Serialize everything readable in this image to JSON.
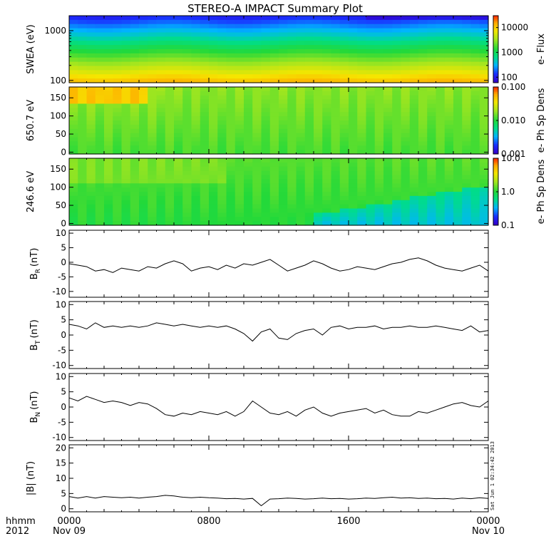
{
  "title": "STEREO-A IMPACT Summary Plot",
  "stamp": "Sat Jun  1 02:34:42 2013",
  "x_axis": {
    "row1_label": "hhmm",
    "row2_label": "2012",
    "ticks": [
      {
        "hour": 0,
        "label": "0000",
        "date": "Nov 09"
      },
      {
        "hour": 8,
        "label": "0800",
        "date": ""
      },
      {
        "hour": 16,
        "label": "1600",
        "date": ""
      },
      {
        "hour": 24,
        "label": "0000",
        "date": "Nov 10"
      }
    ]
  },
  "chart_data": [
    {
      "type": "heatmap",
      "id": "swea",
      "ylabel": "SWEA (eV)",
      "y_scale": "log",
      "ylim": [
        90,
        2000
      ],
      "y_ticks": [
        {
          "v": 100,
          "label": "100"
        },
        {
          "v": 1000,
          "label": "1000"
        }
      ],
      "colorbar": {
        "label": "e- Flux",
        "scale": "log",
        "range": [
          60,
          30000
        ],
        "ticks": [
          {
            "v": 100,
            "label": "100"
          },
          {
            "v": 1000,
            "label": "1000"
          },
          {
            "v": 10000,
            "label": "10000"
          }
        ]
      },
      "color_stops": [
        "#ff3300",
        "#ffaa00",
        "#f5e600",
        "#a5e61e",
        "#22d93a",
        "#00dd88",
        "#00b4ff",
        "#1a2dff",
        "#3300cc"
      ],
      "color_positions": [
        0,
        0.1,
        0.22,
        0.35,
        0.5,
        0.62,
        0.75,
        0.88,
        1
      ]
    },
    {
      "type": "heatmap",
      "id": "pad650",
      "ylabel": "650.7 eV",
      "y_scale": "linear",
      "ylim": [
        -5,
        180
      ],
      "y_ticks": [
        {
          "v": 0,
          "label": "0"
        },
        {
          "v": 50,
          "label": "50"
        },
        {
          "v": 100,
          "label": "100"
        },
        {
          "v": 150,
          "label": "150"
        }
      ],
      "colorbar": {
        "label": "e- Ph Sp Dens",
        "scale": "log",
        "range": [
          0.001,
          0.1
        ],
        "ticks": [
          {
            "v": 0.001,
            "label": "0.001"
          },
          {
            "v": 0.01,
            "label": "0.010"
          },
          {
            "v": 0.1,
            "label": "0.100"
          }
        ]
      }
    },
    {
      "type": "heatmap",
      "id": "pad246",
      "ylabel": "246.6 eV",
      "y_scale": "linear",
      "ylim": [
        -5,
        180
      ],
      "y_ticks": [
        {
          "v": 0,
          "label": "0"
        },
        {
          "v": 50,
          "label": "50"
        },
        {
          "v": 100,
          "label": "100"
        },
        {
          "v": 150,
          "label": "150"
        }
      ],
      "colorbar": {
        "label": "e- Ph Sp Dens",
        "scale": "log",
        "range": [
          0.1,
          10
        ],
        "ticks": [
          {
            "v": 0.1,
            "label": "0.1"
          },
          {
            "v": 1,
            "label": "1.0"
          },
          {
            "v": 10,
            "label": "10.0"
          }
        ]
      }
    },
    {
      "type": "line",
      "id": "br",
      "ylabel": "B",
      "ylabel_sub": "R",
      "ylabel_unit": "(nT)",
      "ylim": [
        -12,
        11
      ],
      "y_ticks": [
        {
          "v": -10,
          "label": "-10"
        },
        {
          "v": -5,
          "label": "-5"
        },
        {
          "v": 0,
          "label": "0"
        },
        {
          "v": 5,
          "label": "5"
        },
        {
          "v": 10,
          "label": "10"
        }
      ],
      "x": [
        0,
        0.5,
        1,
        1.5,
        2,
        2.5,
        3,
        3.5,
        4,
        4.5,
        5,
        5.5,
        6,
        6.5,
        7,
        7.5,
        8,
        8.5,
        9,
        9.5,
        10,
        10.5,
        11,
        11.5,
        12,
        12.5,
        13,
        13.5,
        14,
        14.5,
        15,
        15.5,
        16,
        16.5,
        17,
        17.5,
        18,
        18.5,
        19,
        19.5,
        20,
        20.5,
        21,
        21.5,
        22,
        22.5,
        23,
        23.5,
        24
      ],
      "values": [
        -0.5,
        -1,
        -1.5,
        -3,
        -2.5,
        -3.5,
        -2,
        -2.5,
        -3,
        -1.5,
        -2,
        -0.5,
        0.5,
        -0.5,
        -3,
        -2,
        -1.5,
        -2.5,
        -1,
        -2,
        -0.5,
        -1,
        0,
        1,
        -1,
        -3,
        -2,
        -1,
        0.5,
        -0.5,
        -2,
        -3,
        -2.5,
        -1.5,
        -2,
        -2.5,
        -1.5,
        -0.5,
        0,
        1,
        1.5,
        0.5,
        -1,
        -2,
        -2.5,
        -3,
        -2,
        -1,
        -3
      ]
    },
    {
      "type": "line",
      "id": "bt",
      "ylabel": "B",
      "ylabel_sub": "T",
      "ylabel_unit": "(nT)",
      "ylim": [
        -11,
        11
      ],
      "y_ticks": [
        {
          "v": -10,
          "label": "-10"
        },
        {
          "v": -5,
          "label": "-5"
        },
        {
          "v": 0,
          "label": "0"
        },
        {
          "v": 5,
          "label": "5"
        },
        {
          "v": 10,
          "label": "10"
        }
      ],
      "x": [
        0,
        0.5,
        1,
        1.5,
        2,
        2.5,
        3,
        3.5,
        4,
        4.5,
        5,
        5.5,
        6,
        6.5,
        7,
        7.5,
        8,
        8.5,
        9,
        9.5,
        10,
        10.5,
        11,
        11.5,
        12,
        12.5,
        13,
        13.5,
        14,
        14.5,
        15,
        15.5,
        16,
        16.5,
        17,
        17.5,
        18,
        18.5,
        19,
        19.5,
        20,
        20.5,
        21,
        21.5,
        22,
        22.5,
        23,
        23.5,
        24
      ],
      "values": [
        3.5,
        3,
        2,
        4,
        2.5,
        3,
        2.5,
        3,
        2.5,
        3,
        4,
        3.5,
        3,
        3.5,
        3,
        2.5,
        3,
        2.5,
        3,
        2,
        0.5,
        -2,
        1,
        2,
        -1,
        -1.5,
        0.5,
        1.5,
        2,
        0,
        2.5,
        3,
        2,
        2.5,
        2.5,
        3,
        2,
        2.5,
        2.5,
        3,
        2.5,
        2.5,
        3,
        2.5,
        2,
        1.5,
        3,
        1,
        1.5
      ]
    },
    {
      "type": "line",
      "id": "bn",
      "ylabel": "B",
      "ylabel_sub": "N",
      "ylabel_unit": "(nT)",
      "ylim": [
        -11,
        11
      ],
      "y_ticks": [
        {
          "v": -10,
          "label": "-10"
        },
        {
          "v": -5,
          "label": "-5"
        },
        {
          "v": 0,
          "label": "0"
        },
        {
          "v": 5,
          "label": "5"
        },
        {
          "v": 10,
          "label": "10"
        }
      ],
      "x": [
        0,
        0.5,
        1,
        1.5,
        2,
        2.5,
        3,
        3.5,
        4,
        4.5,
        5,
        5.5,
        6,
        6.5,
        7,
        7.5,
        8,
        8.5,
        9,
        9.5,
        10,
        10.5,
        11,
        11.5,
        12,
        12.5,
        13,
        13.5,
        14,
        14.5,
        15,
        15.5,
        16,
        16.5,
        17,
        17.5,
        18,
        18.5,
        19,
        19.5,
        20,
        20.5,
        21,
        21.5,
        22,
        22.5,
        23,
        23.5,
        24
      ],
      "values": [
        3,
        2,
        3.5,
        2.5,
        1.5,
        2,
        1.5,
        0.5,
        1.5,
        1,
        -0.5,
        -2.5,
        -3,
        -2,
        -2.5,
        -1.5,
        -2,
        -2.5,
        -1.5,
        -3,
        -1.5,
        2,
        0,
        -2,
        -2.5,
        -1.5,
        -3,
        -1,
        0,
        -2,
        -3,
        -2,
        -1.5,
        -1,
        -0.5,
        -2,
        -1,
        -2.5,
        -3,
        -3,
        -1.5,
        -2,
        -1,
        0,
        1,
        1.5,
        0.5,
        0,
        2
      ]
    },
    {
      "type": "line",
      "id": "bmag",
      "ylabel": "|B| (nT)",
      "ylim": [
        -1,
        21
      ],
      "y_ticks": [
        {
          "v": 0,
          "label": "0"
        },
        {
          "v": 5,
          "label": "5"
        },
        {
          "v": 10,
          "label": "10"
        },
        {
          "v": 15,
          "label": "15"
        },
        {
          "v": 20,
          "label": "20"
        }
      ],
      "x": [
        0,
        0.5,
        1,
        1.5,
        2,
        2.5,
        3,
        3.5,
        4,
        4.5,
        5,
        5.5,
        6,
        6.5,
        7,
        7.5,
        8,
        8.5,
        9,
        9.5,
        10,
        10.5,
        11,
        11.5,
        12,
        12.5,
        13,
        13.5,
        14,
        14.5,
        15,
        15.5,
        16,
        16.5,
        17,
        17.5,
        18,
        18.5,
        19,
        19.5,
        20,
        20.5,
        21,
        21.5,
        22,
        22.5,
        23,
        23.5,
        24
      ],
      "values": [
        4,
        3.5,
        4,
        3.5,
        4,
        3.8,
        3.6,
        3.8,
        3.5,
        3.8,
        4,
        4.4,
        4.2,
        3.8,
        3.6,
        3.8,
        3.6,
        3.5,
        3.3,
        3.4,
        3.2,
        3.4,
        1,
        3.2,
        3.3,
        3.5,
        3.4,
        3.2,
        3.3,
        3.5,
        3.3,
        3.4,
        3.2,
        3.3,
        3.5,
        3.4,
        3.6,
        3.8,
        3.5,
        3.6,
        3.4,
        3.5,
        3.3,
        3.4,
        3.2,
        3.5,
        3.3,
        3.6,
        3.4
      ]
    }
  ]
}
